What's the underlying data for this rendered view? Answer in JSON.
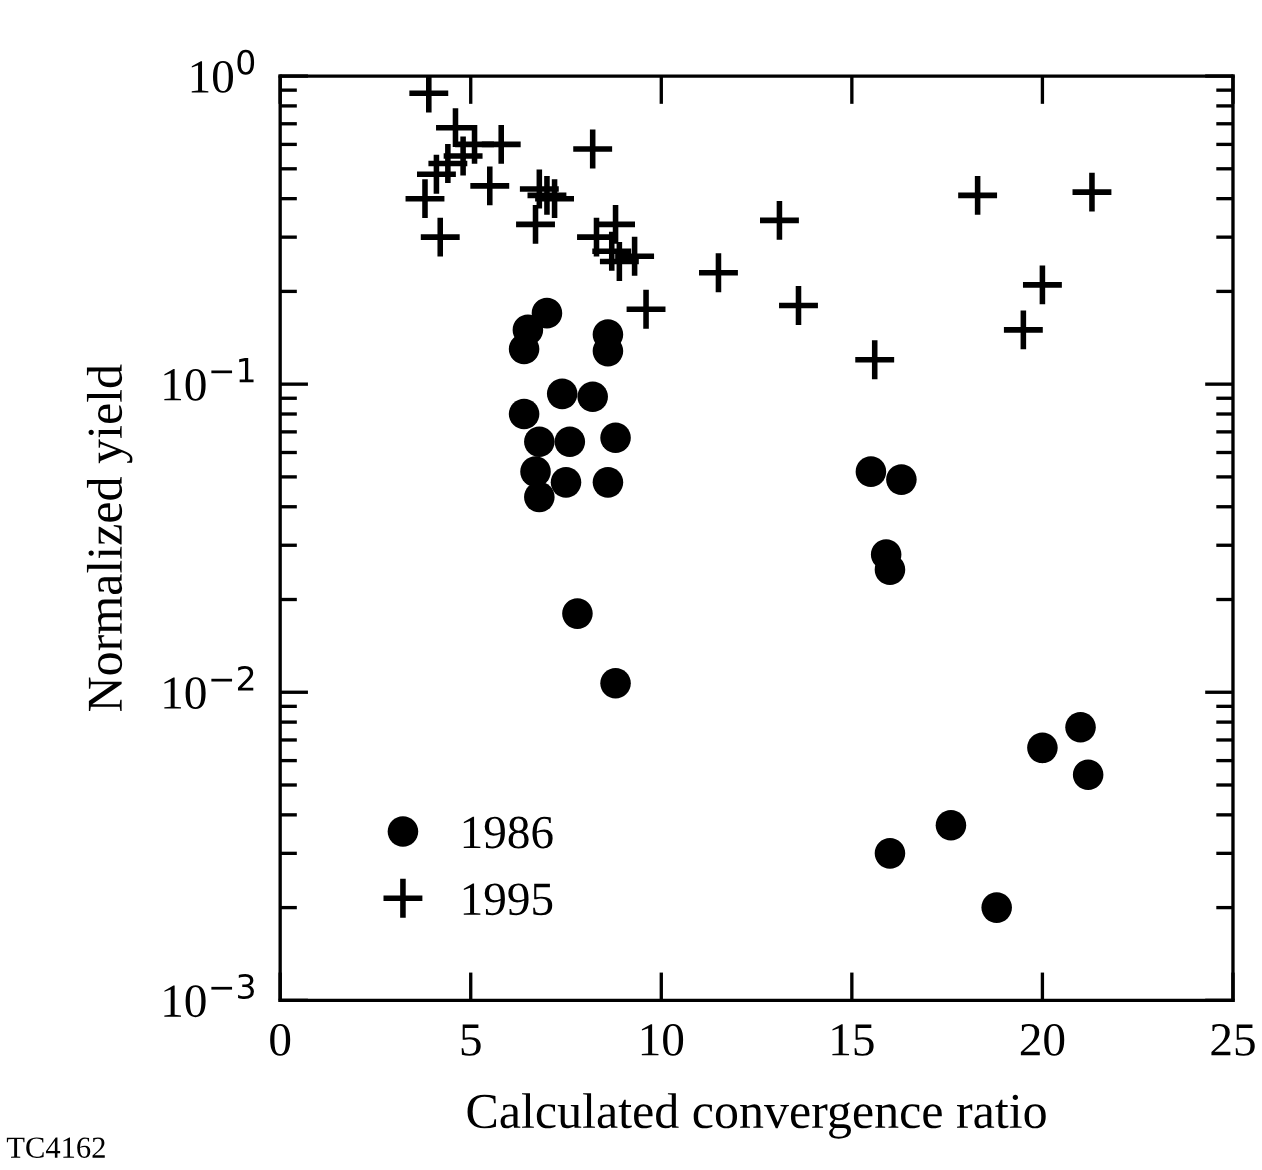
{
  "chart_data": {
    "type": "scatter",
    "xlabel": "Calculated convergence ratio",
    "ylabel": "Normalized yield",
    "log": "y",
    "xlim": [
      0,
      25
    ],
    "ylim": [
      0.001,
      1
    ],
    "xticks": [
      0,
      5,
      10,
      15,
      20,
      25
    ],
    "yticks": [
      {
        "value": 0.001,
        "label": "10$^{−3}$"
      },
      {
        "value": 0.01,
        "label": "10$^{−2}$"
      },
      {
        "value": 0.1,
        "label": "10$^{−1}$"
      },
      {
        "value": 1,
        "label": "10$^{0}$"
      }
    ],
    "grid": false,
    "legend": "bottom left",
    "annotations": [
      "TC4162"
    ],
    "series": [
      {
        "name": "1986",
        "color": "#000000",
        "marker": "circle",
        "x": [
          6.4,
          6.5,
          7.0,
          6.4,
          6.8,
          6.7,
          6.8,
          7.4,
          7.6,
          7.5,
          8.2,
          8.6,
          8.6,
          8.8,
          8.6,
          7.8,
          8.8,
          15.5,
          16.3,
          15.9,
          16.0,
          16.0,
          17.6,
          18.8,
          20.0,
          21.0,
          21.2
        ],
        "values": [
          0.13,
          0.15,
          0.17,
          0.08,
          0.065,
          0.052,
          0.043,
          0.093,
          0.065,
          0.048,
          0.091,
          0.145,
          0.128,
          0.067,
          0.048,
          0.018,
          0.0107,
          0.052,
          0.049,
          0.028,
          0.025,
          0.003,
          0.0037,
          0.002,
          0.0066,
          0.0077,
          0.0054
        ]
      },
      {
        "name": "1995",
        "color": "#000000",
        "marker": "cross",
        "x": [
          3.9,
          3.8,
          4.1,
          4.2,
          4.4,
          4.6,
          4.8,
          5.1,
          5.5,
          5.8,
          6.7,
          6.8,
          7.0,
          7.2,
          8.2,
          8.3,
          8.7,
          8.8,
          8.9,
          9.3,
          9.6,
          11.5,
          13.1,
          13.6,
          15.6,
          18.3,
          19.5,
          20.0,
          21.3
        ],
        "values": [
          0.88,
          0.4,
          0.48,
          0.3,
          0.52,
          0.68,
          0.55,
          0.6,
          0.44,
          0.6,
          0.33,
          0.43,
          0.41,
          0.4,
          0.58,
          0.3,
          0.27,
          0.33,
          0.25,
          0.26,
          0.175,
          0.23,
          0.34,
          0.18,
          0.12,
          0.41,
          0.15,
          0.21,
          0.42
        ]
      }
    ]
  }
}
